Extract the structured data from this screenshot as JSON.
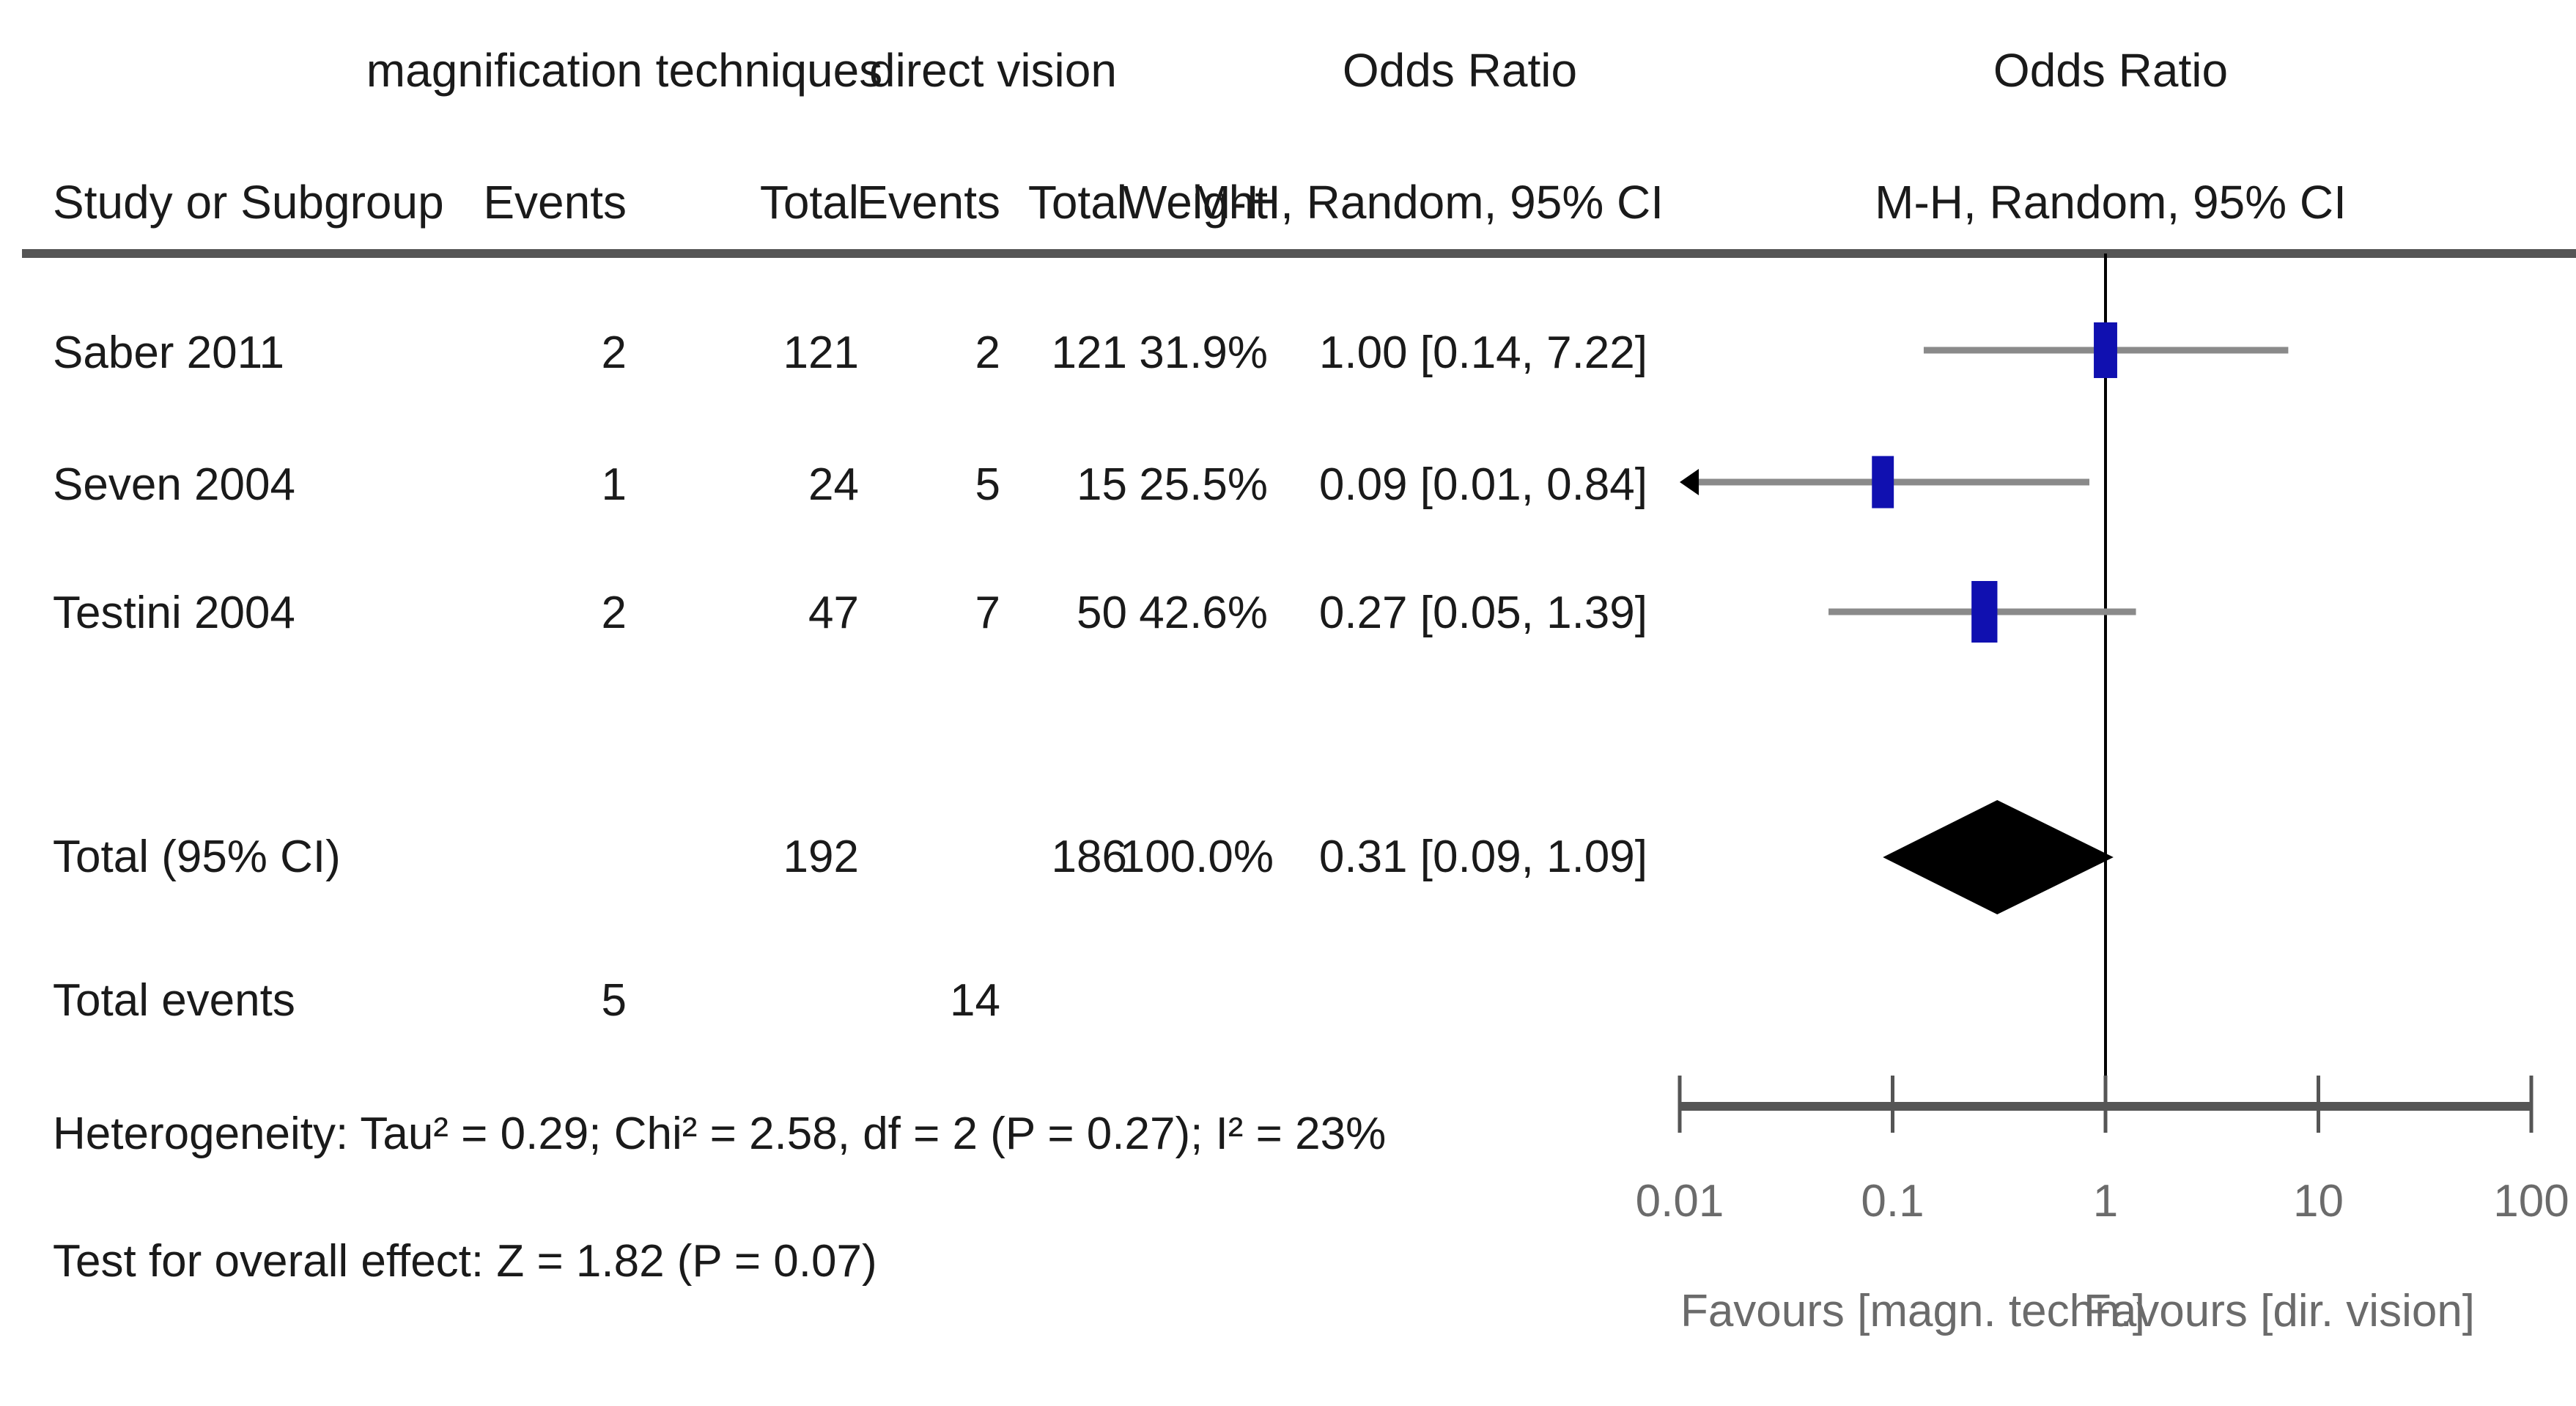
{
  "headers": {
    "group1": "magnification techniques",
    "group2": "direct vision",
    "effect_measure": "Odds Ratio",
    "plot_measure": "Odds Ratio",
    "study": "Study or Subgroup",
    "events1": "Events",
    "total1": "Total",
    "events2": "Events",
    "total2": "Total",
    "weight": "Weight",
    "effect_method": "M-H, Random, 95% CI",
    "plot_method": "M-H, Random, 95% CI"
  },
  "rows": [
    {
      "study": "Saber 2011",
      "events1": "2",
      "total1": "121",
      "events2": "2",
      "total2": "121",
      "weight": "31.9%",
      "ci_text": "1.00 [0.14, 7.22]"
    },
    {
      "study": "Seven 2004",
      "events1": "1",
      "total1": "24",
      "events2": "5",
      "total2": "15",
      "weight": "25.5%",
      "ci_text": "0.09 [0.01, 0.84]"
    },
    {
      "study": "Testini 2004",
      "events1": "2",
      "total1": "47",
      "events2": "7",
      "total2": "50",
      "weight": "42.6%",
      "ci_text": "0.27 [0.05, 1.39]"
    }
  ],
  "total": {
    "label": "Total (95% CI)",
    "total1": "192",
    "total2": "186",
    "weight": "100.0%",
    "ci_text": "0.31 [0.09, 1.09]"
  },
  "total_events": {
    "label": "Total events",
    "events1": "5",
    "events2": "14"
  },
  "heterogeneity": "Heterogeneity: Tau² = 0.29; Chi² = 2.58, df = 2 (P = 0.27); I² = 23%",
  "overall_effect": "Test for overall effect: Z = 1.82 (P = 0.07)",
  "favours_left": "Favours [magn. techn.]",
  "favours_right": "Favours [dir. vision]",
  "colors": {
    "study_marker": "#1010b0",
    "ci_line": "#8a8a8a",
    "diamond": "#000000",
    "axis": "#555555"
  },
  "chart_data": {
    "type": "forest",
    "scale": "log",
    "xlim": [
      0.01,
      100
    ],
    "ticks": [
      0.01,
      0.1,
      1,
      10,
      100
    ],
    "tick_labels": [
      "0.01",
      "0.1",
      "1",
      "10",
      "100"
    ],
    "null_value": 1,
    "studies": [
      {
        "name": "Saber 2011",
        "or": 1.0,
        "lo": 0.14,
        "hi": 7.22,
        "weight": 31.9
      },
      {
        "name": "Seven 2004",
        "or": 0.09,
        "lo": 0.01,
        "hi": 0.84,
        "weight": 25.5
      },
      {
        "name": "Testini 2004",
        "or": 0.27,
        "lo": 0.05,
        "hi": 1.39,
        "weight": 42.6
      }
    ],
    "pooled": {
      "or": 0.31,
      "lo": 0.09,
      "hi": 1.09
    }
  }
}
